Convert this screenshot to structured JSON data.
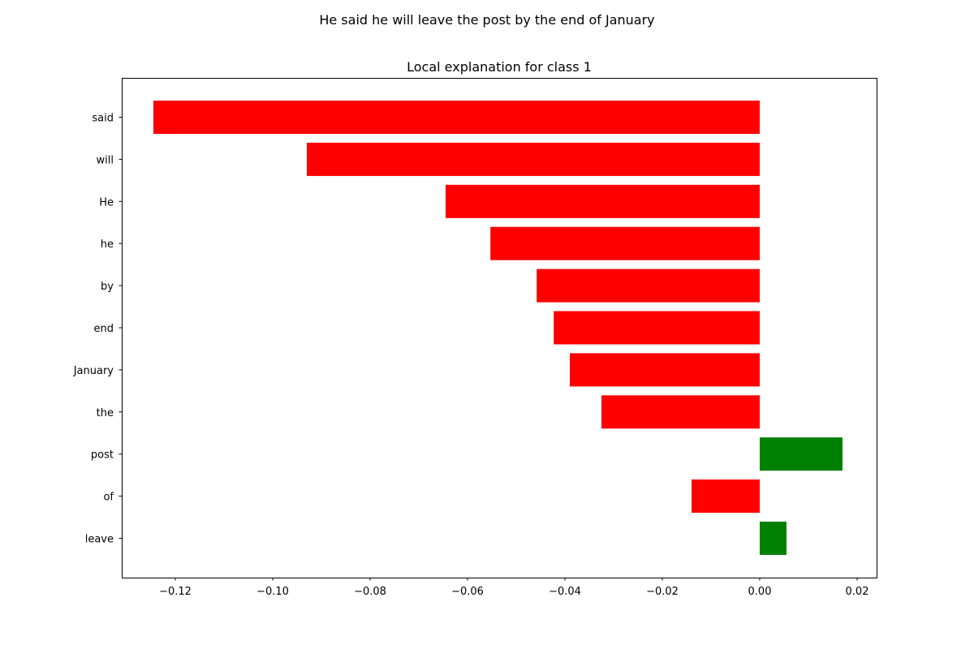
{
  "figure": {
    "suptitle": "He said he will leave the post by the end of January"
  },
  "chart_data": {
    "type": "bar",
    "orientation": "horizontal",
    "title": "Local explanation for class 1",
    "xlabel": "",
    "ylabel": "",
    "categories": [
      "said",
      "will",
      "He",
      "he",
      "by",
      "end",
      "January",
      "the",
      "post",
      "of",
      "leave"
    ],
    "values": [
      -0.1245,
      -0.093,
      -0.0645,
      -0.0553,
      -0.0458,
      -0.0423,
      -0.039,
      -0.0325,
      0.017,
      -0.014,
      0.0055
    ],
    "xlim": [
      -0.131,
      0.024
    ],
    "xticks": [
      -0.12,
      -0.1,
      -0.08,
      -0.06,
      -0.04,
      -0.02,
      0.0,
      0.02
    ],
    "xtick_labels": [
      "−0.12",
      "−0.10",
      "−0.08",
      "−0.06",
      "−0.04",
      "−0.02",
      "0.00",
      "0.02"
    ],
    "colors": {
      "positive": "#008000",
      "negative": "#ff0000"
    },
    "grid": false,
    "legend": "none"
  }
}
